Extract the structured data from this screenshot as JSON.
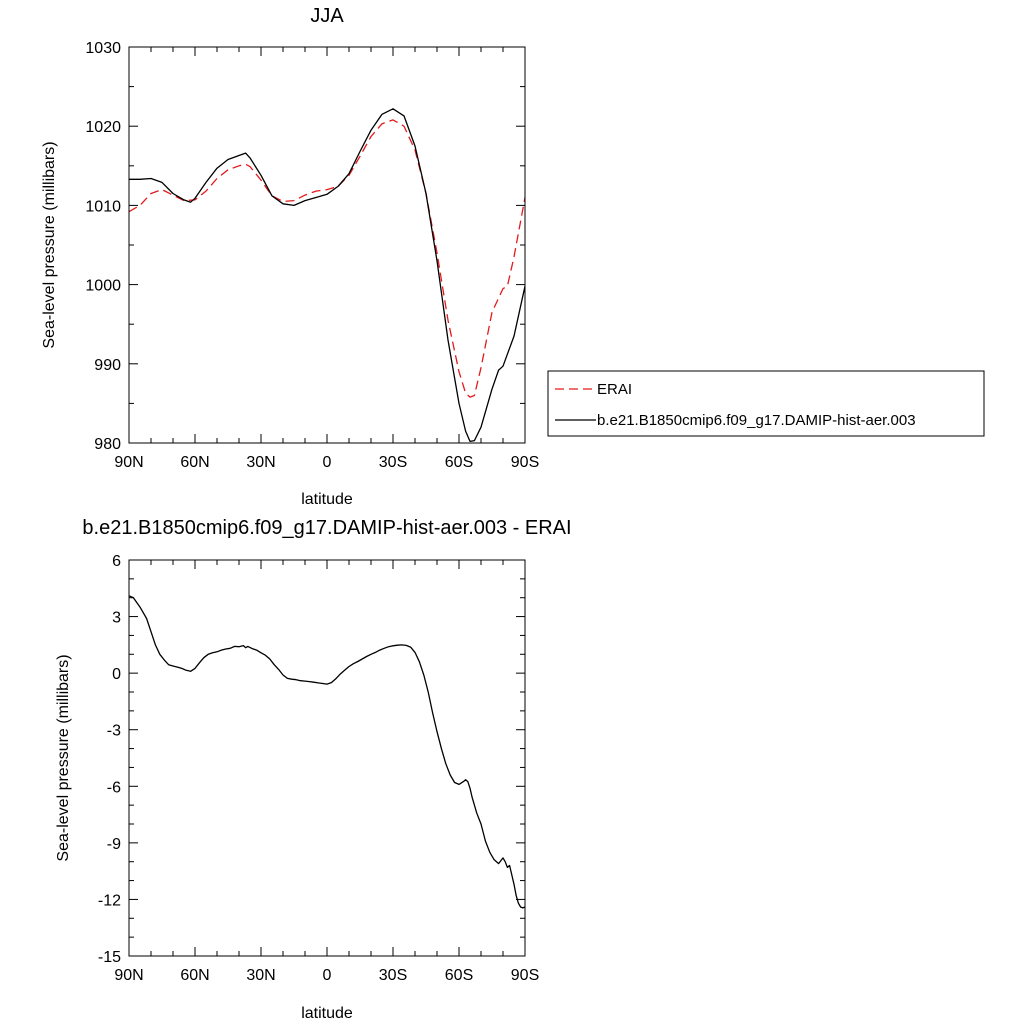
{
  "chart_data": [
    {
      "type": "line",
      "title": "JJA",
      "xlabel": "latitude",
      "ylabel": "Sea-level pressure (millibars)",
      "xlim": [
        90,
        -90
      ],
      "ylim": [
        980,
        1030
      ],
      "x_ticks": [
        90,
        60,
        30,
        0,
        -30,
        -60,
        -90
      ],
      "x_tick_labels": [
        "90N",
        "60N",
        "30N",
        "0",
        "30S",
        "60S",
        "90S"
      ],
      "y_ticks": [
        980,
        990,
        1000,
        1010,
        1020,
        1030
      ],
      "y_tick_labels": [
        "980",
        "990",
        "1000",
        "1010",
        "1020",
        "1030"
      ],
      "grid": false,
      "legend_position": "right",
      "series": [
        {
          "name": "ERAI",
          "color": "#e31a1c",
          "dash": "dashed",
          "x": [
            90,
            85,
            80,
            75,
            70,
            65,
            60,
            55,
            50,
            45,
            40,
            37,
            35,
            30,
            25,
            20,
            15,
            10,
            5,
            0,
            -5,
            -10,
            -15,
            -20,
            -25,
            -30,
            -35,
            -40,
            -45,
            -50,
            -55,
            -60,
            -63,
            -65,
            -67,
            -70,
            -75,
            -80,
            -82,
            -85,
            -90
          ],
          "values": [
            1009.2,
            1010.0,
            1011.5,
            1012.0,
            1011.3,
            1010.6,
            1010.7,
            1011.8,
            1013.4,
            1014.5,
            1015.0,
            1015.2,
            1014.9,
            1013.2,
            1011.2,
            1010.5,
            1010.6,
            1011.3,
            1011.8,
            1012.0,
            1012.4,
            1013.8,
            1016.2,
            1018.7,
            1020.3,
            1020.8,
            1020.0,
            1017.0,
            1011.5,
            1004.0,
            995.5,
            989.0,
            986.3,
            985.8,
            986.0,
            989.5,
            996.5,
            999.5,
            999.8,
            1003.5,
            1011.0
          ]
        },
        {
          "name": "b.e21.B1850cmip6.f09_g17.DAMIP-hist-aer.003",
          "color": "#000000",
          "dash": "solid",
          "x": [
            90,
            85,
            80,
            75,
            70,
            65,
            62,
            60,
            55,
            50,
            45,
            40,
            37,
            35,
            30,
            25,
            20,
            15,
            10,
            5,
            0,
            -5,
            -10,
            -15,
            -20,
            -25,
            -30,
            -35,
            -40,
            -45,
            -50,
            -55,
            -60,
            -63,
            -65,
            -67,
            -70,
            -75,
            -78,
            -80,
            -85,
            -90
          ],
          "values": [
            1013.3,
            1013.3,
            1013.4,
            1012.9,
            1011.5,
            1010.7,
            1010.4,
            1010.9,
            1012.9,
            1014.7,
            1015.8,
            1016.3,
            1016.6,
            1016.0,
            1013.8,
            1011.2,
            1010.2,
            1010.0,
            1010.6,
            1011.0,
            1011.4,
            1012.4,
            1014.0,
            1016.8,
            1019.5,
            1021.5,
            1022.2,
            1021.3,
            1017.5,
            1011.5,
            1003.0,
            993.0,
            985.0,
            981.5,
            980.2,
            980.3,
            982.0,
            986.8,
            989.2,
            989.7,
            993.5,
            999.8
          ]
        }
      ]
    },
    {
      "type": "line",
      "title": "b.e21.B1850cmip6.f09_g17.DAMIP-hist-aer.003 - ERAI",
      "xlabel": "latitude",
      "ylabel": "Sea-level pressure (millibars)",
      "xlim": [
        90,
        -90
      ],
      "ylim": [
        -15,
        6
      ],
      "x_ticks": [
        90,
        60,
        30,
        0,
        -30,
        -60,
        -90
      ],
      "x_tick_labels": [
        "90N",
        "60N",
        "30N",
        "0",
        "30S",
        "60S",
        "90S"
      ],
      "y_ticks": [
        -15,
        -12,
        -9,
        -6,
        -3,
        0,
        3,
        6
      ],
      "y_tick_labels": [
        "-15",
        "-12",
        "-9",
        "-6",
        "-3",
        "0",
        "3",
        "6"
      ],
      "grid": false,
      "series": [
        {
          "color": "#000000",
          "dash": "solid",
          "x": [
            90,
            88,
            85,
            82,
            80,
            78,
            76,
            74,
            72,
            70,
            68,
            66,
            64,
            62,
            60,
            58,
            56,
            54,
            52,
            50,
            48,
            46,
            44,
            42,
            40,
            38,
            37,
            36,
            34,
            32,
            30,
            28,
            26,
            24,
            22,
            20,
            18,
            16,
            14,
            12,
            10,
            8,
            6,
            4,
            2,
            0,
            -2,
            -4,
            -6,
            -8,
            -10,
            -12,
            -14,
            -16,
            -18,
            -20,
            -22,
            -24,
            -26,
            -28,
            -30,
            -32,
            -34,
            -36,
            -38,
            -40,
            -42,
            -44,
            -46,
            -48,
            -50,
            -52,
            -54,
            -56,
            -58,
            -60,
            -62,
            -63,
            -64,
            -65,
            -66,
            -67,
            -68,
            -70,
            -72,
            -74,
            -76,
            -78,
            -80,
            -81,
            -82,
            -83,
            -84,
            -85,
            -86,
            -87,
            -88,
            -89,
            -90
          ],
          "values": [
            4.1,
            4.0,
            3.5,
            2.9,
            2.2,
            1.5,
            1.0,
            0.7,
            0.45,
            0.38,
            0.32,
            0.25,
            0.15,
            0.1,
            0.25,
            0.55,
            0.82,
            1.0,
            1.08,
            1.13,
            1.22,
            1.28,
            1.32,
            1.42,
            1.4,
            1.46,
            1.35,
            1.42,
            1.3,
            1.22,
            1.08,
            0.95,
            0.75,
            0.45,
            0.2,
            -0.1,
            -0.28,
            -0.32,
            -0.35,
            -0.4,
            -0.42,
            -0.45,
            -0.48,
            -0.52,
            -0.55,
            -0.58,
            -0.5,
            -0.3,
            -0.05,
            0.15,
            0.35,
            0.5,
            0.62,
            0.75,
            0.88,
            1.0,
            1.1,
            1.22,
            1.32,
            1.4,
            1.45,
            1.48,
            1.5,
            1.47,
            1.38,
            1.1,
            0.6,
            -0.1,
            -1.0,
            -2.1,
            -3.1,
            -4.0,
            -4.8,
            -5.4,
            -5.8,
            -5.9,
            -5.75,
            -5.65,
            -5.75,
            -6.1,
            -6.6,
            -7.0,
            -7.4,
            -8.0,
            -8.9,
            -9.5,
            -9.9,
            -10.1,
            -9.8,
            -10.0,
            -10.3,
            -10.2,
            -10.7,
            -11.2,
            -11.8,
            -12.2,
            -12.4,
            -12.45,
            -12.4
          ]
        }
      ]
    }
  ]
}
